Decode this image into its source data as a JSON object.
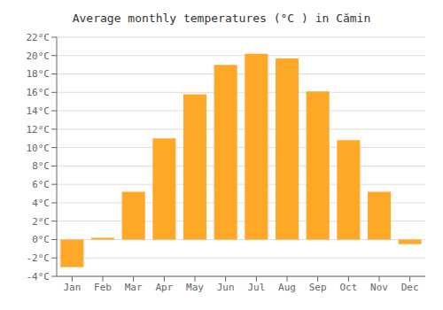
{
  "chart_data": {
    "type": "bar",
    "title": "Average monthly temperatures (°C ) in Cămin",
    "categories": [
      "Jan",
      "Feb",
      "Mar",
      "Apr",
      "May",
      "Jun",
      "Jul",
      "Aug",
      "Sep",
      "Oct",
      "Nov",
      "Dec"
    ],
    "values": [
      -3.0,
      0.2,
      5.2,
      11.0,
      15.8,
      19.0,
      20.2,
      19.7,
      16.1,
      10.8,
      5.2,
      -0.5
    ],
    "color": "#FFA726",
    "ylim": [
      -4,
      22
    ],
    "yticks": [
      {
        "value": -4,
        "label": "-4°C"
      },
      {
        "value": -2,
        "label": "-2°C"
      },
      {
        "value": 0,
        "label": "0°C"
      },
      {
        "value": 2,
        "label": "2°C"
      },
      {
        "value": 4,
        "label": "4°C"
      },
      {
        "value": 6,
        "label": "6°C"
      },
      {
        "value": 8,
        "label": "8°C"
      },
      {
        "value": 10,
        "label": "10°C"
      },
      {
        "value": 12,
        "label": "12°C"
      },
      {
        "value": 14,
        "label": "14°C"
      },
      {
        "value": 16,
        "label": "16°C"
      },
      {
        "value": 18,
        "label": "18°C"
      },
      {
        "value": 20,
        "label": "20°C"
      },
      {
        "value": 22,
        "label": "22°C"
      }
    ],
    "grid": true
  }
}
